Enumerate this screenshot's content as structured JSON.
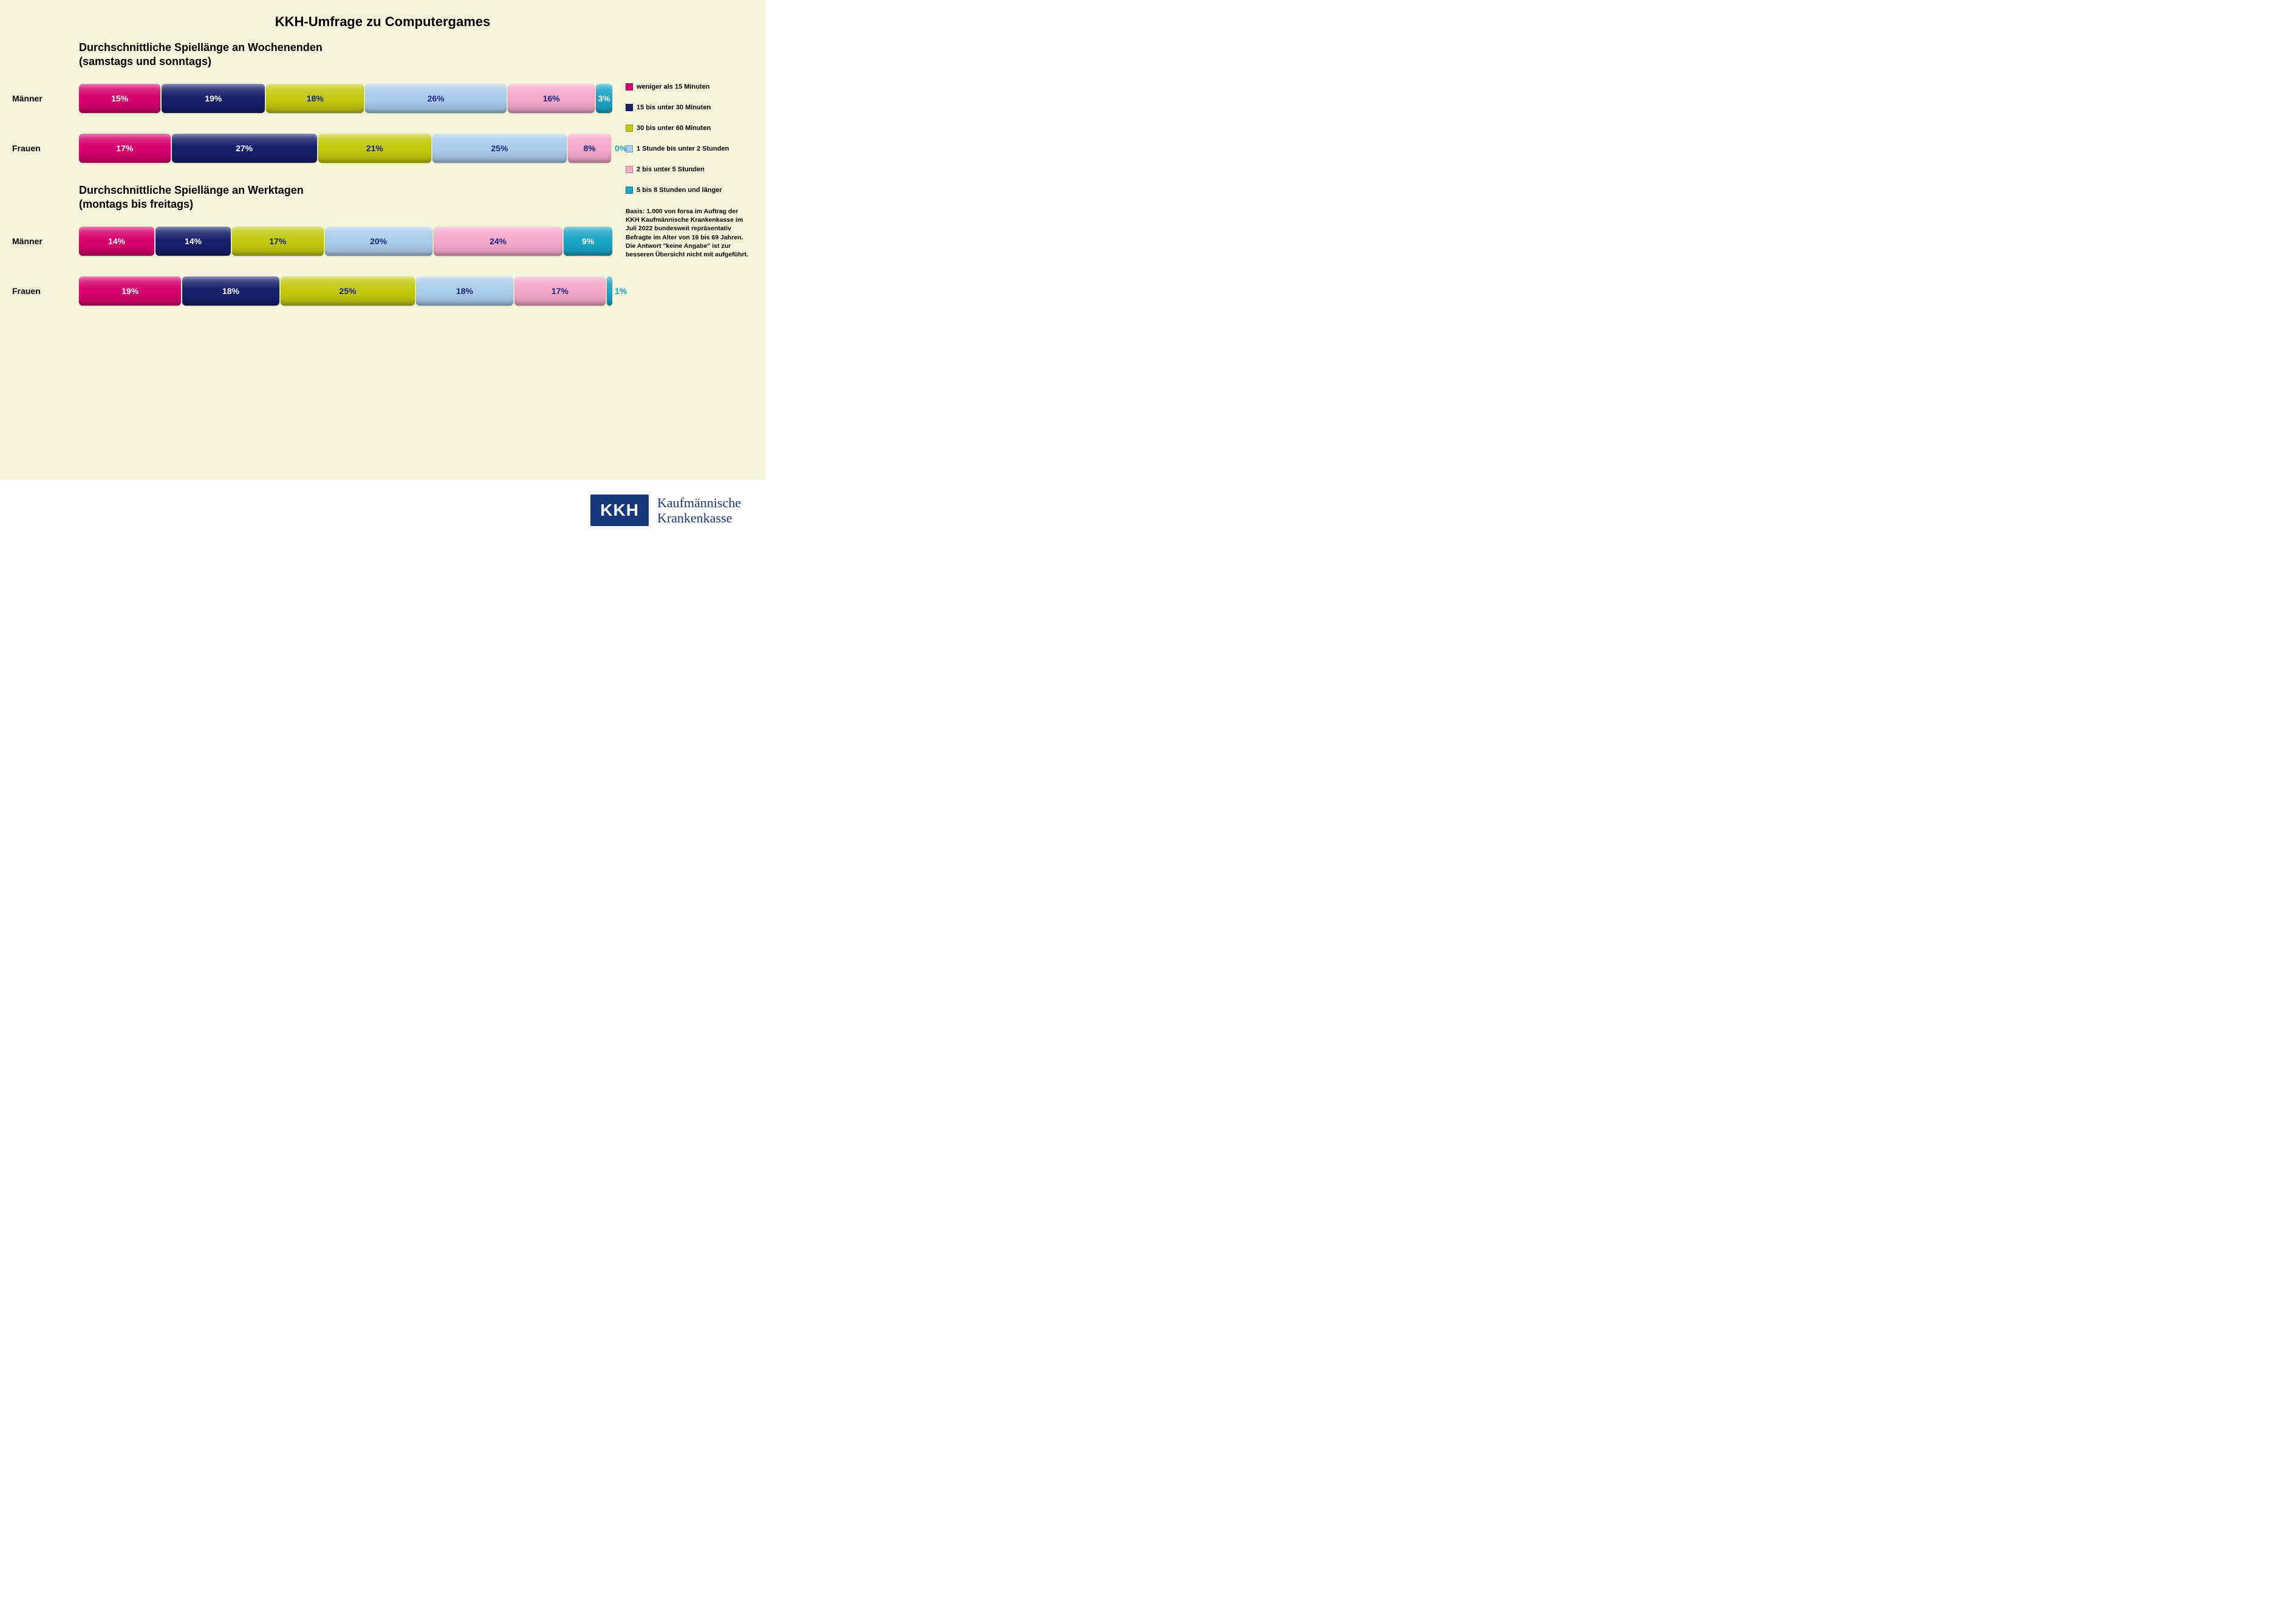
{
  "title": "KKH-Umfrage zu Computergames",
  "background_color": "#f5f5dc",
  "chart_type": "stacked_horizontal_bar",
  "categories": [
    {
      "key": "lt15",
      "label": "weniger als 15 Minuten",
      "color": "#d6006c"
    },
    {
      "key": "15_30",
      "label": "15 bis unter 30 Minuten",
      "color": "#17206b"
    },
    {
      "key": "30_60",
      "label": "30 bis unter 60 Minuten",
      "color": "#c3c90f"
    },
    {
      "key": "1_2h",
      "label": "1 Stunde bis unter 2 Stunden",
      "color": "#a9cdec"
    },
    {
      "key": "2_5h",
      "label": "2 bis unter 5 Stunden",
      "color": "#f6a9c9"
    },
    {
      "key": "5_8h",
      "label": "5 bis 8 Stunden und länger",
      "color": "#1aa6c7"
    }
  ],
  "sections": [
    {
      "title": "Durchschnittliche Spiellänge an Wochenenden\n(samstags und sonntags)",
      "rows": [
        {
          "label": "Männer",
          "values": [
            15,
            19,
            18,
            26,
            16,
            3
          ]
        },
        {
          "label": "Frauen",
          "values": [
            17,
            27,
            21,
            25,
            8,
            0
          ]
        }
      ]
    },
    {
      "title": "Durchschnittliche Spiellänge an Werktagen\n(montags bis freitags)",
      "rows": [
        {
          "label": "Männer",
          "values": [
            14,
            14,
            17,
            20,
            24,
            9
          ]
        },
        {
          "label": "Frauen",
          "values": [
            19,
            18,
            25,
            18,
            17,
            1
          ]
        }
      ]
    }
  ],
  "dark_text_indices": [
    2,
    3,
    4
  ],
  "footnote": "Basis: 1.000 von forsa im Auftrag der KKH Kaufmännische Krankenkasse im Juli 2022 bundesweit repräsentativ Befragte im Alter von 16 bis 69 Jahren. Die Antwort \"keine Angabe\" ist zur besseren Übersicht nicht mit aufgeführt.",
  "logo": {
    "badge": "KKH",
    "line1": "Kaufmännische",
    "line2": "Krankenkasse",
    "badge_bg": "#17387a",
    "text_color": "#17387a"
  },
  "value_suffix": "%",
  "title_fontsize": 22,
  "subtitle_fontsize": 18,
  "bar_label_fontsize": 14,
  "seg_label_fontsize": 14,
  "legend_fontsize": 11,
  "footnote_fontsize": 10.5
}
